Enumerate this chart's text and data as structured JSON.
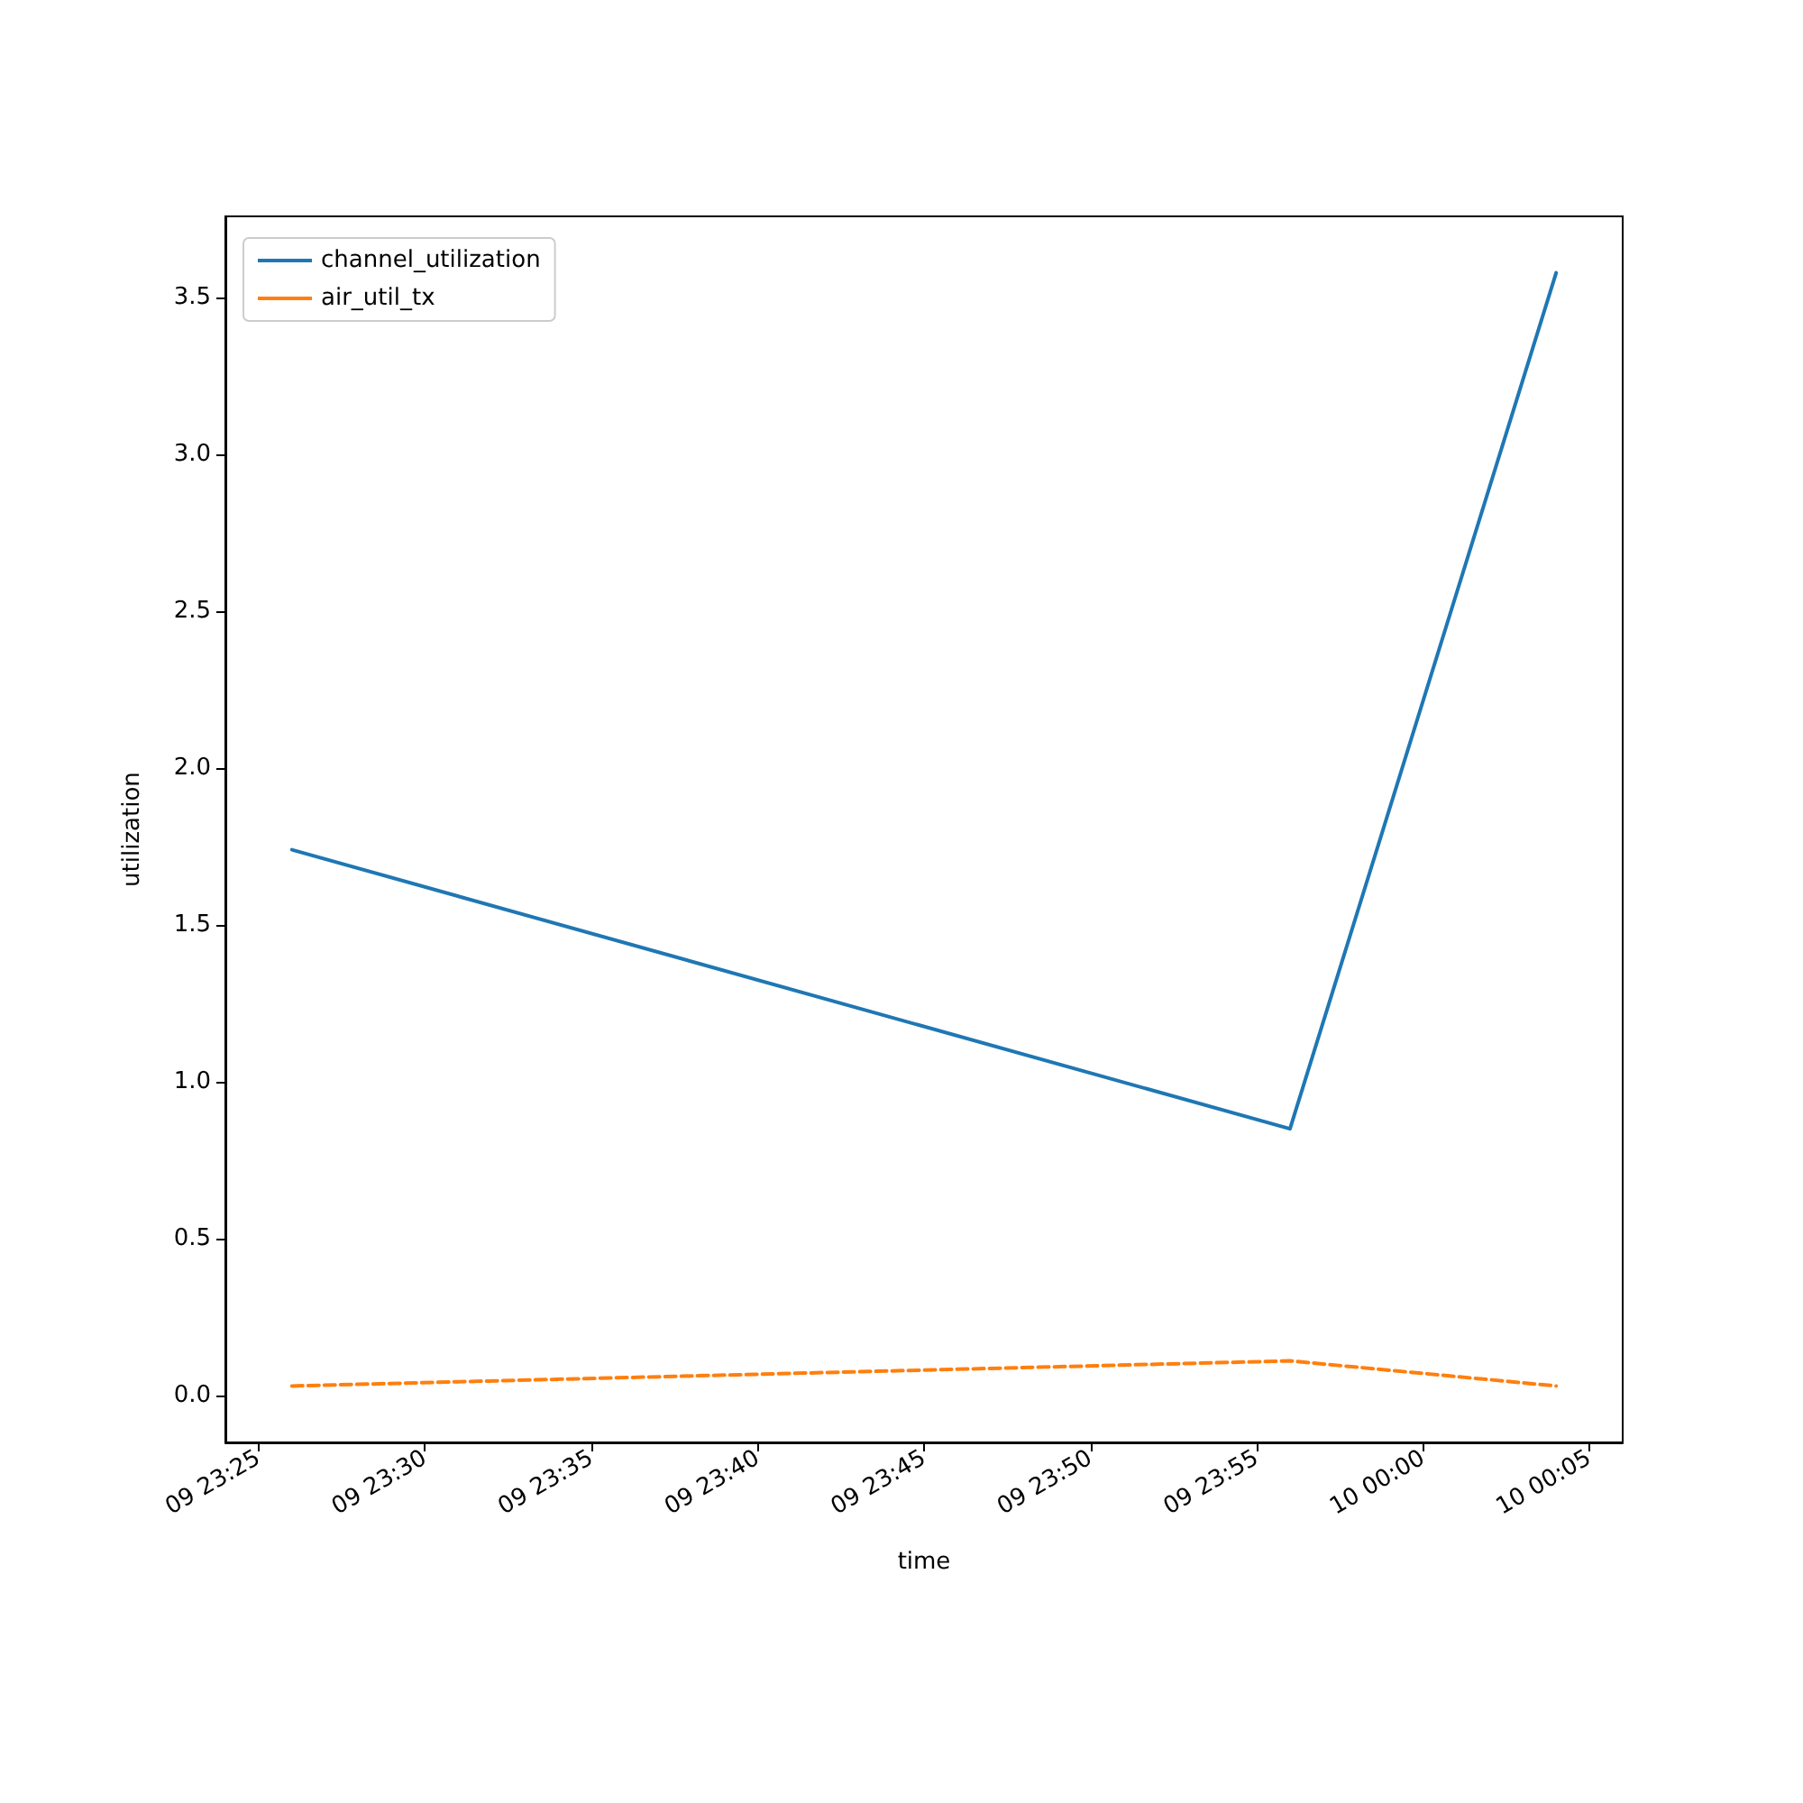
{
  "chart_data": {
    "type": "line",
    "xlabel": "time",
    "ylabel": "utilization",
    "x": [
      "--01-09T23:26",
      "--01-09T23:56",
      "--01-10T00:04"
    ],
    "series": [
      {
        "name": "channel_utilization",
        "color": "#1f77b4",
        "values": [
          1.74,
          0.85,
          3.58
        ],
        "line_style": "solid"
      },
      {
        "name": "air_util_tx",
        "color": "#ff7f0e",
        "values": [
          0.03,
          0.11,
          0.03
        ],
        "line_style": "dashed"
      }
    ],
    "xlim": [
      "--01-09T23:24",
      "--01-10T00:06"
    ],
    "xticks": [
      {
        "value": "--01-09T23:25",
        "label": "09 23:25"
      },
      {
        "value": "--01-09T23:30",
        "label": "09 23:30"
      },
      {
        "value": "--01-09T23:35",
        "label": "09 23:35"
      },
      {
        "value": "--01-09T23:40",
        "label": "09 23:40"
      },
      {
        "value": "--01-09T23:45",
        "label": "09 23:45"
      },
      {
        "value": "--01-09T23:50",
        "label": "09 23:50"
      },
      {
        "value": "--01-09T23:55",
        "label": "09 23:55"
      },
      {
        "value": "--01-10T00:00",
        "label": "10 00:00"
      },
      {
        "value": "--01-10T00:05",
        "label": "10 00:05"
      }
    ],
    "ylim": [
      -0.15,
      3.76
    ],
    "yticks": [
      {
        "value": 0,
        "label": "0.0"
      },
      {
        "value": 0.5,
        "label": "0.5"
      },
      {
        "value": 1,
        "label": "1.0"
      },
      {
        "value": 1.5,
        "label": "1.5"
      },
      {
        "value": 2,
        "label": "2.0"
      },
      {
        "value": 2.5,
        "label": "2.5"
      },
      {
        "value": 3,
        "label": "3.0"
      },
      {
        "value": 3.5,
        "label": "3.5"
      }
    ],
    "grid": false,
    "legend": "top left",
    "marker": "none"
  }
}
